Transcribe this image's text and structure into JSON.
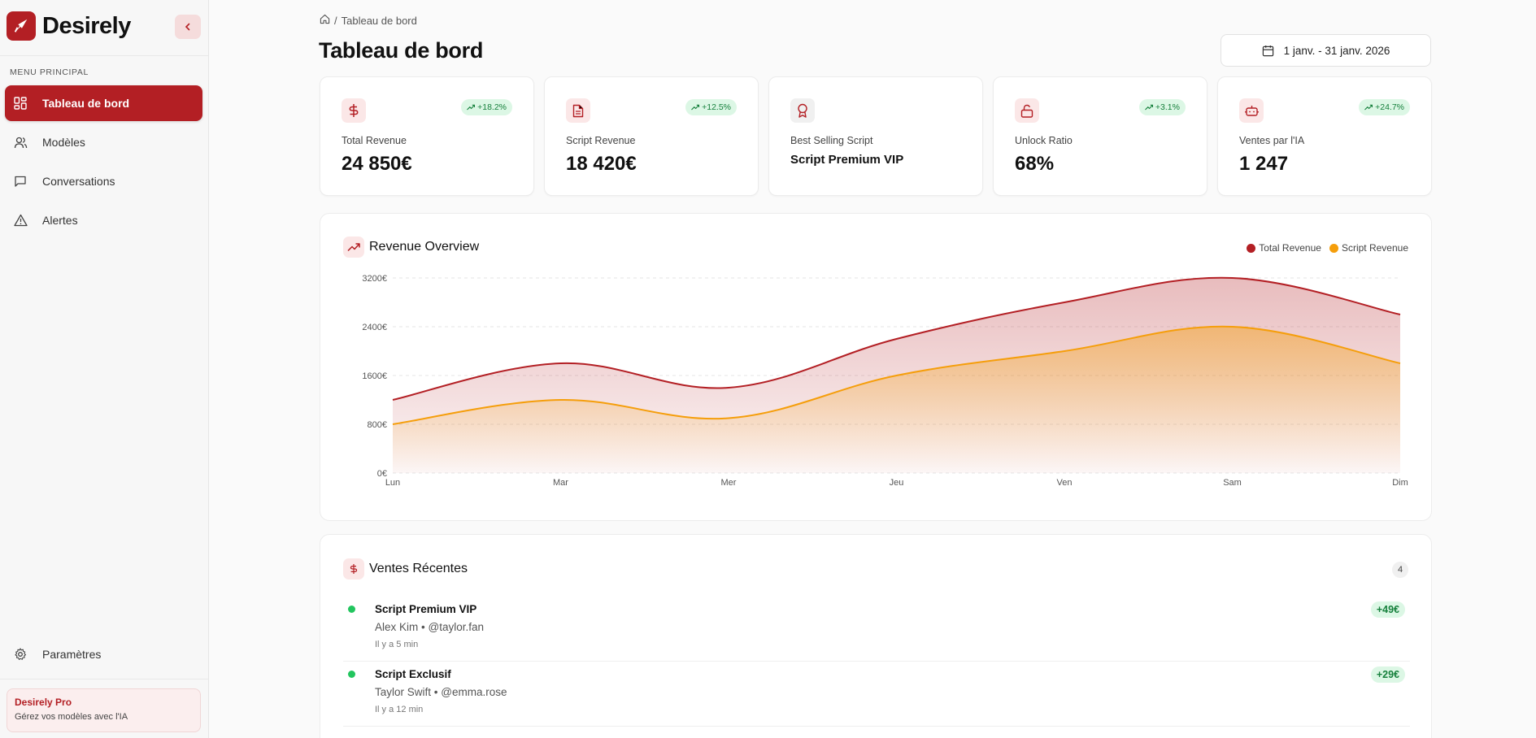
{
  "brand": {
    "name": "Desirely"
  },
  "sidebar": {
    "section_title": "MENU PRINCIPAL",
    "items": [
      {
        "label": "Tableau de bord",
        "icon": "dashboard-icon",
        "active": true
      },
      {
        "label": "Modèles",
        "icon": "users-icon",
        "active": false
      },
      {
        "label": "Conversations",
        "icon": "message-icon",
        "active": false
      },
      {
        "label": "Alertes",
        "icon": "alert-icon",
        "active": false
      }
    ],
    "settings_label": "Paramètres",
    "pro": {
      "title": "Desirely Pro",
      "subtitle": "Gérez vos modèles avec l'IA"
    }
  },
  "breadcrumb": {
    "separator": "/",
    "current": "Tableau de bord"
  },
  "page": {
    "title": "Tableau de bord"
  },
  "date_range": "1 janv. - 31 janv. 2026",
  "kpis": [
    {
      "label": "Total Revenue",
      "value": "24 850€",
      "change": "+18.2%",
      "icon": "dollar-icon"
    },
    {
      "label": "Script Revenue",
      "value": "18 420€",
      "change": "+12.5%",
      "icon": "document-icon"
    },
    {
      "label": "Best Selling Script",
      "value": "Script Premium VIP",
      "change": "",
      "icon": "award-icon"
    },
    {
      "label": "Unlock Ratio",
      "value": "68%",
      "change": "+3.1%",
      "icon": "unlock-icon"
    },
    {
      "label": "Ventes par l'IA",
      "value": "1 247",
      "change": "+24.7%",
      "icon": "bot-icon"
    }
  ],
  "chart_data": {
    "type": "area",
    "title": "Revenue Overview",
    "categories": [
      "Lun",
      "Mar",
      "Mer",
      "Jeu",
      "Ven",
      "Sam",
      "Dim"
    ],
    "series": [
      {
        "name": "Total Revenue",
        "color": "#b31f24",
        "values": [
          1200,
          1800,
          1400,
          2200,
          2800,
          3200,
          2600
        ]
      },
      {
        "name": "Script Revenue",
        "color": "#f59e0b",
        "values": [
          800,
          1200,
          900,
          1600,
          2000,
          2400,
          1800
        ]
      }
    ],
    "ylim": [
      0,
      3200
    ],
    "yticks": [
      0,
      800,
      1600,
      2400,
      3200
    ],
    "ytick_labels": [
      "0€",
      "800€",
      "1600€",
      "2400€",
      "3200€"
    ],
    "legend": "top-right"
  },
  "recent_sales": {
    "title": "Ventes Récentes",
    "count": "4",
    "items": [
      {
        "title": "Script Premium VIP",
        "buyer": "Alex Kim • @taylor.fan",
        "time": "Il y a 5 min",
        "amount": "+49€"
      },
      {
        "title": "Script Exclusif",
        "buyer": "Taylor Swift • @emma.rose",
        "time": "Il y a 12 min",
        "amount": "+29€"
      }
    ]
  }
}
